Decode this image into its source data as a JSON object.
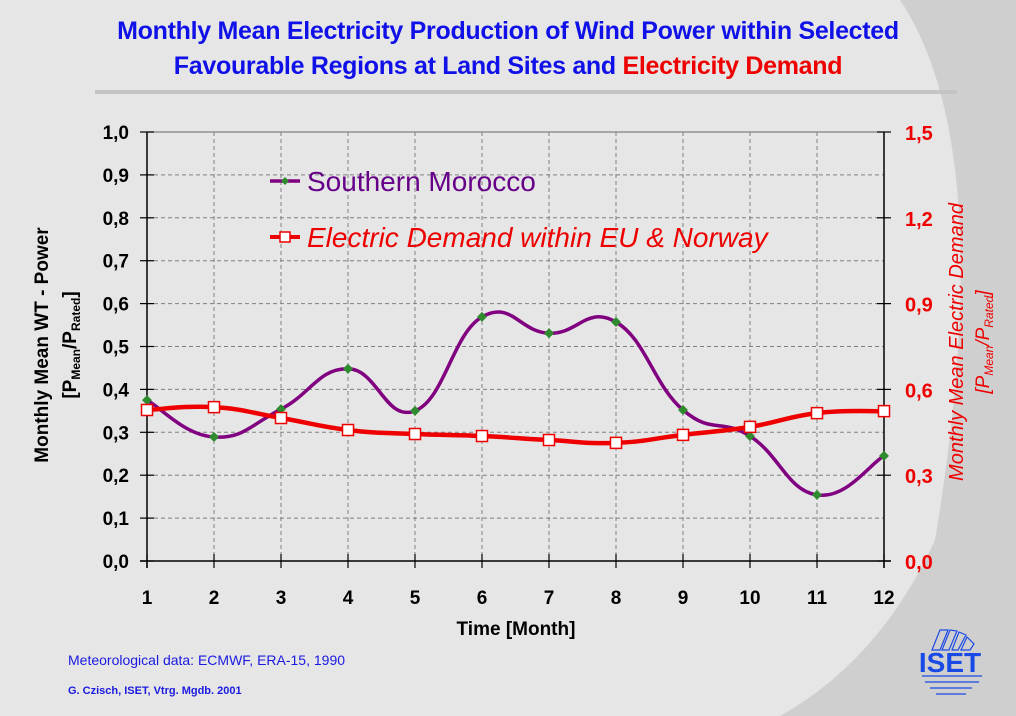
{
  "title": {
    "line1": "Monthly Mean Electricity Production of Wind Power within Selected",
    "line2_blue": "Favourable Regions at Land Sites and ",
    "line2_red": "Electricity Demand"
  },
  "footer": {
    "source": "Meteorological data: ECMWF, ERA-15, 1990",
    "author": "G. Czisch, ISET, Vtrg. Mgdb. 2001"
  },
  "logo": {
    "text": "ISET"
  },
  "colors": {
    "title_blue": "#1010e8",
    "demand_red": "#ee0000",
    "morocco_purple": "#800080",
    "marker_green": "#2e8b2e"
  },
  "chart_data": {
    "type": "line",
    "title": "Monthly Mean Electricity Production of Wind Power within Selected Favourable Regions at Land Sites and Electricity Demand",
    "xlabel": "Time  [Month]",
    "x": [
      1,
      2,
      3,
      4,
      5,
      6,
      7,
      8,
      9,
      10,
      11,
      12
    ],
    "xticks": [
      "1",
      "2",
      "3",
      "4",
      "5",
      "6",
      "7",
      "8",
      "9",
      "10",
      "11",
      "12"
    ],
    "ylabel_left": {
      "main": "Monthly Mean WT - Power",
      "unit_open": "[P",
      "sub1": "Mean",
      "mid": "/P",
      "sub2": "Rated",
      "unit_close": "]"
    },
    "ylabel_right": {
      "main": "Monthly Mean Electric Demand",
      "unit_open": "[P",
      "sub1": "Mean",
      "mid": "/P",
      "sub2": "Rated",
      "unit_close": "]"
    },
    "ylim_left": [
      0,
      1.0
    ],
    "yticks_left": [
      "0,0",
      "0,1",
      "0,2",
      "0,3",
      "0,4",
      "0,5",
      "0,6",
      "0,7",
      "0,8",
      "0,9",
      "1,0"
    ],
    "ylim_right": [
      0,
      1.5
    ],
    "yticks_right": [
      "0,0",
      "0,3",
      "0,6",
      "0,9",
      "1,2",
      "1,5"
    ],
    "grid": true,
    "legend_position": "top-left",
    "series": [
      {
        "name": "Southern Morocco",
        "axis": "left",
        "marker": "diamond",
        "values": [
          0.375,
          0.289,
          0.354,
          0.448,
          0.35,
          0.569,
          0.531,
          0.557,
          0.352,
          0.291,
          0.154,
          0.245
        ]
      },
      {
        "name": "Electric Demand within EU & Norway",
        "axis": "right",
        "marker": "square",
        "values": [
          0.528,
          0.538,
          0.5,
          0.458,
          0.444,
          0.437,
          0.423,
          0.413,
          0.441,
          0.469,
          0.517,
          0.524
        ]
      }
    ]
  }
}
